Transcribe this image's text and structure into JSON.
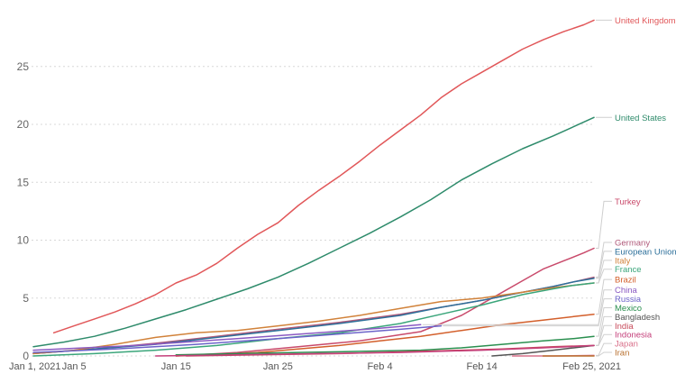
{
  "chart_data": {
    "type": "line",
    "title": "",
    "xlabel": "",
    "ylabel": "",
    "xlim": [
      0,
      55
    ],
    "ylim": [
      0,
      29
    ],
    "yticks": [
      0,
      5,
      10,
      15,
      20,
      25
    ],
    "xticks": [
      {
        "day": 0,
        "label": "Jan 1, 2021"
      },
      {
        "day": 4,
        "label": "Jan 5"
      },
      {
        "day": 14,
        "label": "Jan 15"
      },
      {
        "day": 24,
        "label": "Jan 25"
      },
      {
        "day": 34,
        "label": "Feb 4"
      },
      {
        "day": 44,
        "label": "Feb 14"
      },
      {
        "day": 55,
        "label": "Feb 25, 2021"
      }
    ],
    "series": [
      {
        "name": "United Kingdom",
        "color": "#e15759",
        "x": [
          2,
          4,
          6,
          8,
          10,
          12,
          14,
          16,
          18,
          20,
          22,
          24,
          26,
          28,
          30,
          32,
          34,
          36,
          38,
          40,
          42,
          44,
          46,
          48,
          50,
          52,
          54,
          55
        ],
        "y": [
          2.0,
          2.6,
          3.2,
          3.8,
          4.5,
          5.3,
          6.3,
          7.0,
          8.0,
          9.3,
          10.5,
          11.5,
          13.0,
          14.3,
          15.5,
          16.8,
          18.2,
          19.5,
          20.8,
          22.3,
          23.5,
          24.5,
          25.5,
          26.5,
          27.3,
          28.0,
          28.6,
          29.0
        ]
      },
      {
        "name": "United States",
        "color": "#2e8b6b",
        "x": [
          0,
          3,
          6,
          9,
          12,
          15,
          18,
          21,
          24,
          27,
          30,
          33,
          36,
          39,
          42,
          45,
          48,
          51,
          53,
          55
        ],
        "y": [
          0.8,
          1.2,
          1.7,
          2.4,
          3.2,
          4.0,
          4.9,
          5.8,
          6.8,
          8.0,
          9.3,
          10.6,
          12.0,
          13.5,
          15.2,
          16.6,
          17.9,
          19.0,
          19.8,
          20.6
        ]
      },
      {
        "name": "Turkey",
        "color": "#c94a6b",
        "x": [
          14,
          20,
          26,
          32,
          38,
          42,
          45,
          48,
          50,
          52,
          54,
          55
        ],
        "y": [
          0.0,
          0.3,
          0.8,
          1.3,
          2.1,
          3.5,
          5.0,
          6.5,
          7.5,
          8.2,
          8.9,
          9.3
        ]
      },
      {
        "name": "Germany",
        "color": "#b05a7a",
        "x": [
          0,
          6,
          12,
          18,
          24,
          30,
          36,
          40,
          44,
          48,
          51,
          53,
          55
        ],
        "y": [
          0.2,
          0.6,
          1.1,
          1.7,
          2.3,
          2.9,
          3.6,
          4.2,
          4.8,
          5.5,
          6.0,
          6.4,
          6.8
        ]
      },
      {
        "name": "European Union",
        "color": "#2c6f9a",
        "x": [
          0,
          6,
          12,
          18,
          24,
          30,
          36,
          40,
          44,
          48,
          51,
          53,
          55
        ],
        "y": [
          0.2,
          0.6,
          1.0,
          1.6,
          2.2,
          2.8,
          3.5,
          4.2,
          4.8,
          5.5,
          6.0,
          6.4,
          6.7
        ]
      },
      {
        "name": "Italy",
        "color": "#d1823a",
        "x": [
          0,
          4,
          8,
          12,
          16,
          20,
          24,
          28,
          32,
          36,
          40,
          44,
          48,
          51,
          53,
          55
        ],
        "y": [
          0.2,
          0.5,
          1.0,
          1.6,
          2.0,
          2.2,
          2.6,
          3.0,
          3.5,
          4.1,
          4.7,
          5.0,
          5.5,
          5.9,
          6.1,
          6.3
        ]
      },
      {
        "name": "France",
        "color": "#3aa57a",
        "x": [
          0,
          6,
          12,
          18,
          24,
          30,
          36,
          40,
          44,
          48,
          51,
          53,
          55
        ],
        "y": [
          0.0,
          0.2,
          0.5,
          0.9,
          1.5,
          2.0,
          2.8,
          3.6,
          4.4,
          5.3,
          5.8,
          6.1,
          6.3
        ]
      },
      {
        "name": "Brazil",
        "color": "#d35f2b",
        "x": [
          14,
          18,
          22,
          26,
          30,
          34,
          38,
          42,
          46,
          50,
          53,
          55
        ],
        "y": [
          0.0,
          0.1,
          0.3,
          0.6,
          0.9,
          1.3,
          1.7,
          2.2,
          2.7,
          3.1,
          3.4,
          3.6
        ]
      },
      {
        "name": "China",
        "color": "#8a5ac2",
        "x": [
          0,
          10,
          20,
          28,
          34,
          38
        ],
        "y": [
          0.5,
          0.9,
          1.5,
          2.0,
          2.4,
          2.7
        ]
      },
      {
        "name": "Russia",
        "color": "#6c63c9",
        "x": [
          0,
          8,
          16,
          24,
          30,
          36,
          40
        ],
        "y": [
          0.3,
          0.6,
          1.0,
          1.5,
          1.9,
          2.3,
          2.6
        ]
      },
      {
        "name": "Bangladesh",
        "color": "#555555",
        "x": [
          45,
          48,
          51,
          53,
          55
        ],
        "y": [
          0.0,
          0.2,
          0.5,
          0.7,
          0.9
        ]
      },
      {
        "name": "Mexico",
        "color": "#2a8f4f",
        "x": [
          14,
          20,
          26,
          32,
          38,
          42,
          46,
          50,
          53,
          55
        ],
        "y": [
          0.1,
          0.2,
          0.3,
          0.4,
          0.5,
          0.7,
          1.0,
          1.3,
          1.5,
          1.7
        ]
      },
      {
        "name": "India",
        "color": "#c84a5a",
        "x": [
          15,
          22,
          30,
          38,
          46,
          51,
          55
        ],
        "y": [
          0.0,
          0.1,
          0.2,
          0.4,
          0.6,
          0.8,
          0.9
        ]
      },
      {
        "name": "Indonesia",
        "color": "#c43f7a",
        "x": [
          12,
          20,
          28,
          36,
          44,
          50,
          55
        ],
        "y": [
          0.0,
          0.1,
          0.2,
          0.3,
          0.5,
          0.7,
          0.9
        ]
      },
      {
        "name": "Japan",
        "color": "#d9708a",
        "x": [
          47,
          51,
          55
        ],
        "y": [
          0.0,
          0.0,
          0.05
        ]
      },
      {
        "name": "Iran",
        "color": "#b8702e",
        "x": [
          50,
          55
        ],
        "y": [
          0.0,
          0.0
        ]
      }
    ]
  }
}
